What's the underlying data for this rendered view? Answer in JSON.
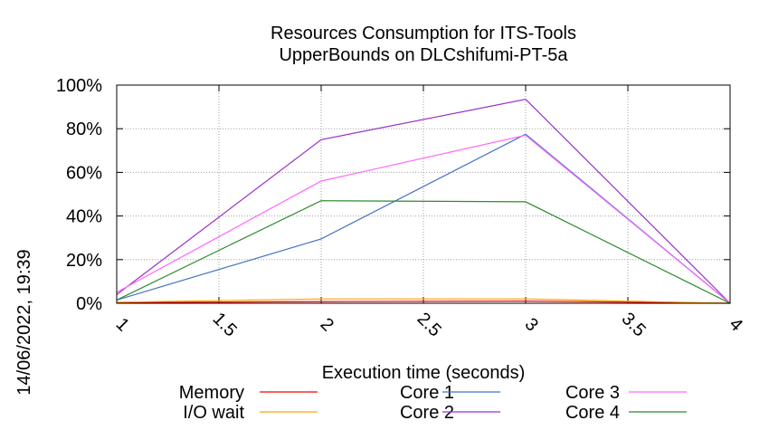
{
  "timestamp": "14/06/2022, 19:39",
  "chart_data": {
    "type": "line",
    "title": "Resources Consumption for ITS-Tools",
    "subtitle": "UpperBounds on DLCshifumi-PT-5a",
    "xlabel": "Execution time (seconds)",
    "ylabel": "",
    "xlim": [
      1,
      4
    ],
    "ylim": [
      0,
      100
    ],
    "x_ticks": [
      "1",
      "1.5",
      "2",
      "2.5",
      "3",
      "3.5",
      "4"
    ],
    "y_ticks": [
      "0%",
      "20%",
      "40%",
      "60%",
      "80%",
      "100%"
    ],
    "grid": true,
    "legend_position": "bottom",
    "series": [
      {
        "name": "Memory",
        "color": "#ff0000",
        "x": [
          1,
          2,
          3,
          4
        ],
        "y": [
          0.3,
          0.8,
          1.0,
          0.0
        ]
      },
      {
        "name": "I/O wait",
        "color": "#ffa500",
        "x": [
          1,
          2,
          3,
          4
        ],
        "y": [
          0.5,
          2.0,
          2.0,
          0.0
        ]
      },
      {
        "name": "Core 1",
        "color": "#4472c4",
        "x": [
          1,
          2,
          3,
          4
        ],
        "y": [
          1.5,
          29.5,
          77.5,
          0.0
        ]
      },
      {
        "name": "Core 2",
        "color": "#9932cc",
        "x": [
          1,
          2,
          3,
          4
        ],
        "y": [
          4.0,
          75.0,
          93.5,
          0.0
        ]
      },
      {
        "name": "Core 3",
        "color": "#ff66ff",
        "x": [
          1,
          2,
          3,
          4
        ],
        "y": [
          5.0,
          56.0,
          77.0,
          0.0
        ]
      },
      {
        "name": "Core 4",
        "color": "#2e8b2e",
        "x": [
          1,
          2,
          3,
          4
        ],
        "y": [
          1.5,
          47.0,
          46.5,
          0.0
        ]
      }
    ]
  }
}
